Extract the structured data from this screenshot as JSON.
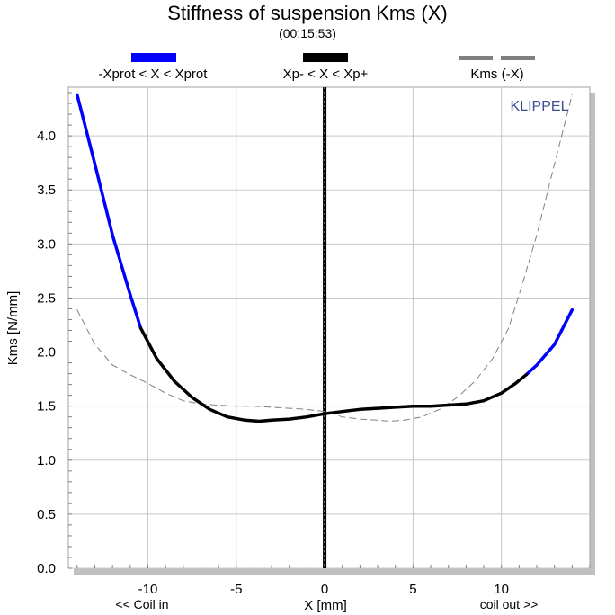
{
  "chart_data": {
    "type": "line",
    "title": "Stiffness of suspension Kms (X)",
    "subtitle": "(00:15:53)",
    "xlabel": "X [mm]",
    "ylabel": "Kms [N/mm]",
    "xlim": [
      -14.5,
      15
    ],
    "ylim": [
      0,
      4.45
    ],
    "x_ticks": [
      -10,
      -5,
      0,
      5,
      10
    ],
    "y_ticks": [
      0.0,
      0.5,
      1.0,
      1.5,
      2.0,
      2.5,
      3.0,
      3.5,
      4.0
    ],
    "grid": true,
    "x_sublabels": {
      "left": "<< Coil in",
      "right": "coil out >>"
    },
    "watermark": "KLIPPEL",
    "legend": [
      {
        "label": "-Xprot < X < Xprot",
        "color": "#0000ff",
        "style": "solid"
      },
      {
        "label": "Xp- < X < Xp+",
        "color": "#000000",
        "style": "solid"
      },
      {
        "label": "Kms (-X)",
        "color": "#808080",
        "style": "dashed"
      }
    ],
    "series": [
      {
        "name": "-Xprot < X < Xprot",
        "color": "#0000ff",
        "style": "solid",
        "segments": [
          {
            "x": [
              -14,
              -13,
              -12,
              -11,
              -10.4
            ],
            "y": [
              4.38,
              3.74,
              3.08,
              2.53,
              2.22
            ]
          },
          {
            "x": [
              11.4,
              12,
              13,
              14
            ],
            "y": [
              1.79,
              1.88,
              2.07,
              2.39
            ]
          }
        ]
      },
      {
        "name": "Xp- < X < Xp+",
        "color": "#000000",
        "style": "solid",
        "segments": [
          {
            "x": [
              -10.4,
              -9.5,
              -8.5,
              -7.5,
              -6.5,
              -5.5,
              -4.5,
              -3.7,
              -3,
              -2,
              -1,
              0,
              1,
              2,
              3,
              4,
              5,
              6,
              7,
              8,
              9,
              10,
              10.8,
              11.4
            ],
            "y": [
              2.22,
              1.94,
              1.73,
              1.58,
              1.47,
              1.4,
              1.37,
              1.36,
              1.37,
              1.38,
              1.4,
              1.43,
              1.45,
              1.47,
              1.48,
              1.49,
              1.5,
              1.5,
              1.51,
              1.52,
              1.55,
              1.62,
              1.71,
              1.79
            ]
          }
        ]
      },
      {
        "name": "Kms (-X)",
        "color": "#808080",
        "style": "dashed",
        "segments": [
          {
            "x": [
              -14,
              -13,
              -12,
              -11,
              -10,
              -9,
              -8,
              -7,
              -6,
              -5,
              -4,
              -3,
              -2,
              -1,
              0,
              1,
              2,
              3,
              3.7,
              4.5,
              5.5,
              6.5,
              7.5,
              8.5,
              9.5,
              10.4,
              11,
              12,
              13,
              14
            ],
            "y": [
              2.39,
              2.07,
              1.88,
              1.79,
              1.71,
              1.62,
              1.55,
              1.52,
              1.51,
              1.5,
              1.5,
              1.49,
              1.48,
              1.47,
              1.45,
              1.4,
              1.38,
              1.37,
              1.36,
              1.37,
              1.4,
              1.47,
              1.58,
              1.73,
              1.94,
              2.22,
              2.53,
              3.08,
              3.74,
              4.38
            ]
          }
        ]
      }
    ],
    "vertical_marker": {
      "x": 0,
      "color": "#000000"
    }
  }
}
